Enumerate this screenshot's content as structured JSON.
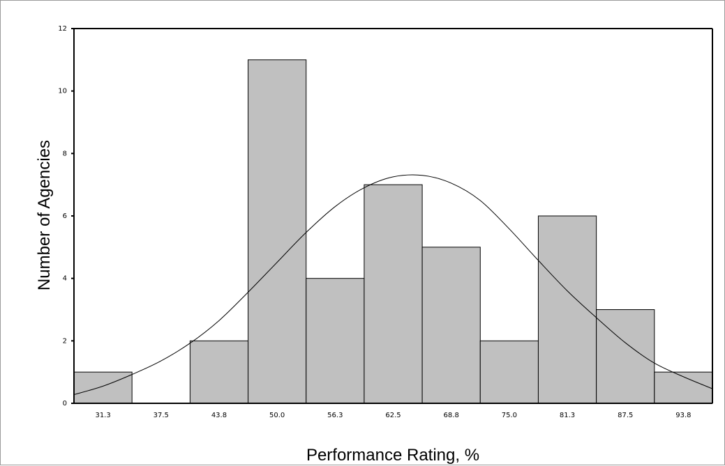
{
  "chart_data": {
    "type": "bar",
    "title": "",
    "xlabel": "Performance Rating, %",
    "ylabel": "Number of Agencies",
    "categories": [
      "31.3",
      "37.5",
      "43.8",
      "50.0",
      "56.3",
      "62.5",
      "68.8",
      "75.0",
      "81.3",
      "87.5",
      "93.8"
    ],
    "values": [
      1,
      0,
      2,
      11,
      4,
      7,
      5,
      2,
      6,
      3,
      1
    ],
    "ylim": [
      0,
      12
    ],
    "yticks": [
      "0",
      "2",
      "4",
      "6",
      "8",
      "10",
      "12"
    ],
    "normal_curve": {
      "x": [
        28.2,
        31.3,
        34.4,
        37.5,
        40.7,
        43.8,
        46.9,
        50.0,
        53.1,
        56.3,
        59.4,
        62.5,
        65.7,
        68.8,
        71.9,
        75.0,
        78.1,
        81.3,
        84.4,
        87.5,
        90.6,
        93.8,
        96.9
      ],
      "y": [
        0.28,
        0.55,
        0.92,
        1.35,
        1.93,
        2.65,
        3.55,
        4.5,
        5.45,
        6.3,
        6.9,
        7.25,
        7.3,
        7.05,
        6.5,
        5.6,
        4.6,
        3.6,
        2.75,
        1.95,
        1.3,
        0.85,
        0.47
      ]
    },
    "colors": {
      "bar_fill": "#c0c0c0",
      "bar_stroke": "#000000",
      "curve": "#000000"
    },
    "grid": false
  }
}
